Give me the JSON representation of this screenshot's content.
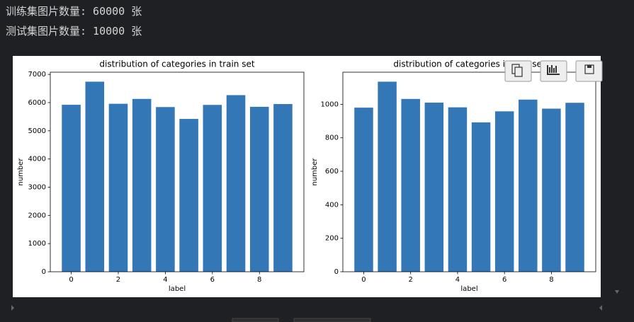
{
  "output_lines": [
    "训练集图片数量: 60000 张",
    "测试集图片数量: 10000 张"
  ],
  "chart_data": [
    {
      "type": "bar",
      "title": "distribution of categories in train set",
      "x_label": "label",
      "y_label": "number",
      "x": [
        0,
        1,
        2,
        3,
        4,
        5,
        6,
        7,
        8,
        9
      ],
      "values": [
        5923,
        6742,
        5958,
        6131,
        5842,
        5421,
        5918,
        6265,
        5851,
        5949
      ],
      "color": "#3477b7",
      "xlim": [
        -0.89,
        9.89
      ],
      "xticks": [
        0,
        2,
        4,
        6,
        8
      ],
      "ylim": [
        0,
        7079
      ],
      "yticks": [
        0,
        1000,
        2000,
        3000,
        4000,
        5000,
        6000,
        7000
      ]
    },
    {
      "type": "bar",
      "title": "distribution of categories in test set",
      "x_label": "label",
      "y_label": "number",
      "x": [
        0,
        1,
        2,
        3,
        4,
        5,
        6,
        7,
        8,
        9
      ],
      "values": [
        980,
        1135,
        1032,
        1010,
        982,
        892,
        958,
        1028,
        974,
        1009
      ],
      "color": "#3477b7",
      "xlim": [
        -0.89,
        9.89
      ],
      "xticks": [
        0,
        2,
        4,
        6,
        8
      ],
      "ylim": [
        0,
        1191.75
      ],
      "yticks": [
        0,
        200,
        400,
        600,
        800,
        1000
      ]
    }
  ]
}
